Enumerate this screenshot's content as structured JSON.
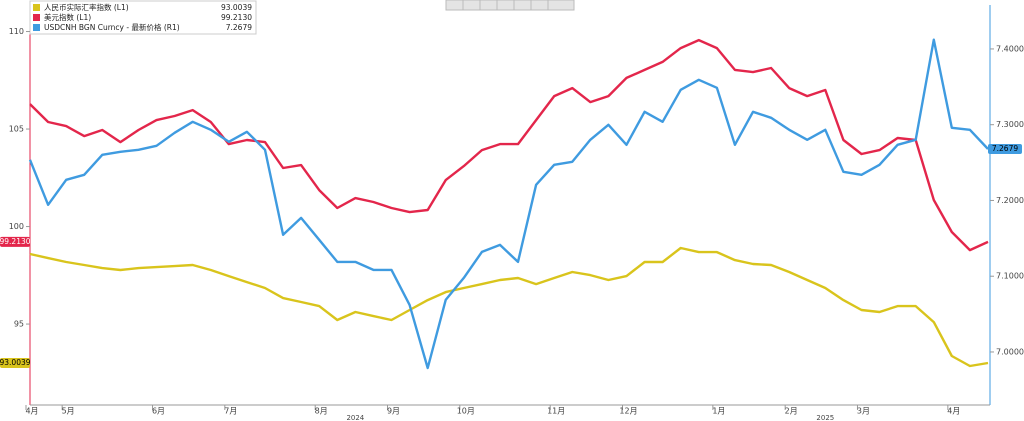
{
  "chart_data": {
    "type": "line",
    "categories": [
      "4月",
      null,
      "5月",
      null,
      null,
      null,
      null,
      "6月",
      null,
      null,
      null,
      "7月",
      null,
      null,
      null,
      null,
      "8月",
      null,
      null,
      null,
      "9月",
      null,
      null,
      null,
      "10月",
      null,
      null,
      null,
      null,
      "11月",
      null,
      null,
      null,
      "12月",
      null,
      null,
      null,
      null,
      "1月",
      null,
      null,
      null,
      "2月",
      null,
      null,
      null,
      "3月",
      null,
      null,
      null,
      null,
      "4月",
      null,
      null
    ],
    "year_labels": [
      "2024",
      "2025"
    ],
    "ylim": [
      90.85,
      111.36
    ],
    "yticks": [
      95,
      100,
      105,
      110
    ],
    "y2lim": [
      6.93,
      7.458
    ],
    "y2ticks": [
      {
        "value": 7.0,
        "label": "7.0000"
      },
      {
        "value": 7.1,
        "label": "7.1000"
      },
      {
        "value": 7.2,
        "label": "7.2000"
      },
      {
        "value": 7.3,
        "label": "7.3000"
      },
      {
        "value": 7.4,
        "label": "7.4000"
      }
    ],
    "grid": false,
    "series": [
      {
        "name": "人民币实际汇率指数 (L1)",
        "color": "#d9c41c",
        "axis": "y",
        "last_label": "93.0039",
        "values": [
          98.59,
          98.38,
          98.18,
          98.03,
          97.87,
          97.77,
          97.87,
          97.92,
          97.97,
          98.03,
          97.77,
          97.46,
          97.15,
          96.85,
          96.33,
          96.13,
          95.92,
          95.21,
          95.62,
          95.41,
          95.21,
          95.72,
          96.23,
          96.64,
          96.85,
          97.05,
          97.26,
          97.36,
          97.05,
          97.36,
          97.67,
          97.51,
          97.26,
          97.46,
          98.18,
          98.18,
          98.9,
          98.69,
          98.69,
          98.28,
          98.08,
          98.03,
          97.67,
          97.26,
          96.85,
          96.23,
          95.72,
          95.62,
          95.92,
          95.92,
          95.1,
          93.36,
          92.85,
          93.0039
        ]
      },
      {
        "name": "美元指数 (L1)",
        "color": "#e3264b",
        "axis": "y",
        "last_label": "99.2130",
        "values": [
          106.28,
          105.36,
          105.15,
          104.64,
          104.95,
          104.33,
          104.95,
          105.46,
          105.67,
          105.97,
          105.36,
          104.23,
          104.44,
          104.33,
          103.0,
          103.15,
          101.87,
          100.95,
          101.46,
          101.26,
          100.95,
          100.74,
          100.85,
          102.38,
          103.1,
          103.92,
          104.23,
          104.23,
          105.46,
          106.69,
          107.1,
          106.38,
          106.69,
          107.62,
          108.03,
          108.44,
          109.15,
          109.56,
          109.15,
          108.03,
          107.92,
          108.13,
          107.1,
          106.69,
          107.0,
          104.44,
          103.72,
          103.92,
          104.54,
          104.44,
          101.36,
          99.72,
          98.79,
          99.213
        ]
      },
      {
        "name": "USDCNH BGN Curncy - 最新价格 (R1)",
        "color": "#3f9be0",
        "axis": "y2",
        "last_label": "7.2679",
        "values": [
          7.2536,
          7.1942,
          7.2272,
          7.2338,
          7.2602,
          7.2642,
          7.2668,
          7.2721,
          7.2893,
          7.3038,
          7.2933,
          7.2774,
          7.2906,
          7.2668,
          7.1546,
          7.177,
          7.148,
          7.1189,
          7.1189,
          7.1083,
          7.1083,
          7.0621,
          6.9789,
          7.0687,
          7.0978,
          7.1321,
          7.1413,
          7.1189,
          7.2206,
          7.247,
          7.251,
          7.2801,
          7.2999,
          7.2734,
          7.317,
          7.3038,
          7.3461,
          7.3593,
          7.3487,
          7.2734,
          7.317,
          7.3091,
          7.2933,
          7.2801,
          7.2933,
          7.2378,
          7.2338,
          7.247,
          7.2734,
          7.2801,
          7.4122,
          7.2959,
          7.2933,
          7.2679
        ]
      }
    ]
  }
}
